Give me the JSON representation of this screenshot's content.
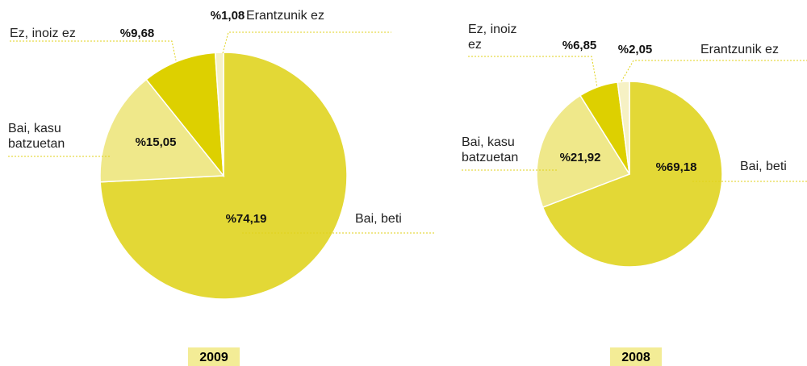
{
  "chart_data": [
    {
      "type": "pie",
      "title": "2009",
      "categories": [
        "Bai, beti",
        "Bai, kasu batzuetan",
        "Ez, inoiz ez",
        "Erantzunik ez"
      ],
      "values": [
        74.19,
        15.05,
        9.68,
        1.08
      ],
      "value_labels": [
        "%74,19",
        "%15,05",
        "%9,68",
        "%1,08"
      ],
      "colors": [
        "#e3d836",
        "#efe88a",
        "#ddd000",
        "#f6f1c4"
      ]
    },
    {
      "type": "pie",
      "title": "2008",
      "categories": [
        "Bai, beti",
        "Bai, kasu batzuetan",
        "Ez, inoiz ez",
        "Erantzunik ez"
      ],
      "values": [
        69.18,
        21.92,
        6.85,
        2.05
      ],
      "value_labels": [
        "%69,18",
        "%21,92",
        "%6,85",
        "%2,05"
      ],
      "colors": [
        "#e3d836",
        "#efe88a",
        "#ddd000",
        "#f6f1c4"
      ]
    }
  ]
}
